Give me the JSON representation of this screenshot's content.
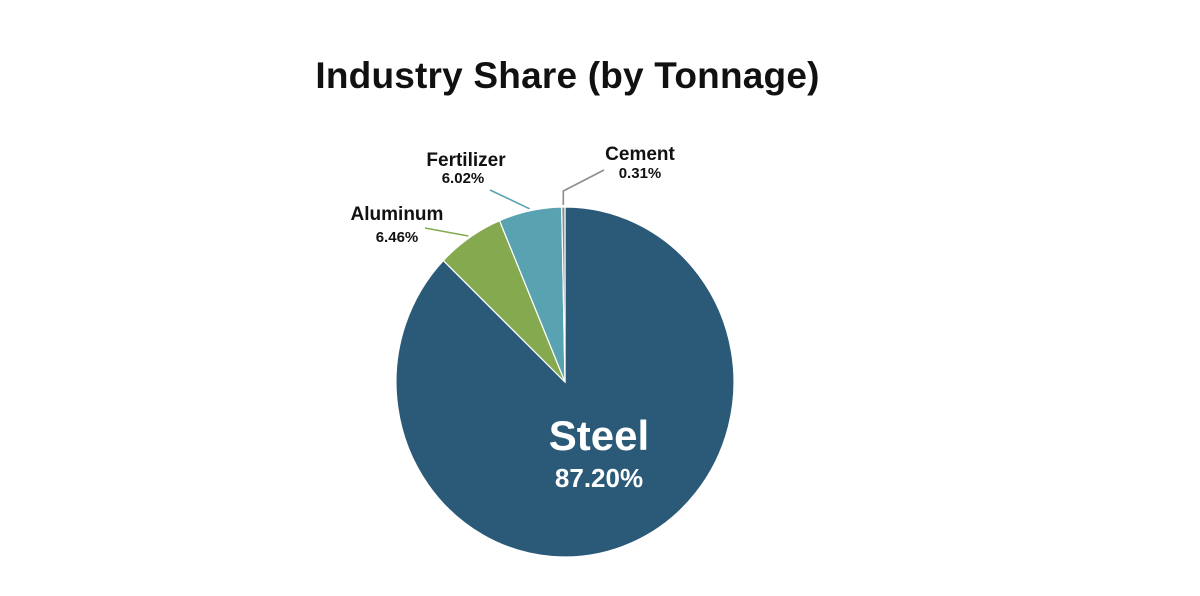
{
  "chart_data": {
    "type": "pie",
    "title": "Industry Share (by Tonnage)",
    "slices": [
      {
        "label": "Steel",
        "value": 87.2,
        "display": "87.20%",
        "color": "#2b5a78"
      },
      {
        "label": "Aluminum",
        "value": 6.46,
        "display": "6.46%",
        "color": "#85a94f"
      },
      {
        "label": "Fertilizer",
        "value": 6.02,
        "display": "6.02%",
        "color": "#59a2b1"
      },
      {
        "label": "Cement",
        "value": 0.31,
        "display": "0.31%",
        "color": "#8c8c8c"
      }
    ],
    "start_angle": "12 o'clock",
    "direction": "clockwise",
    "legend": "none"
  }
}
